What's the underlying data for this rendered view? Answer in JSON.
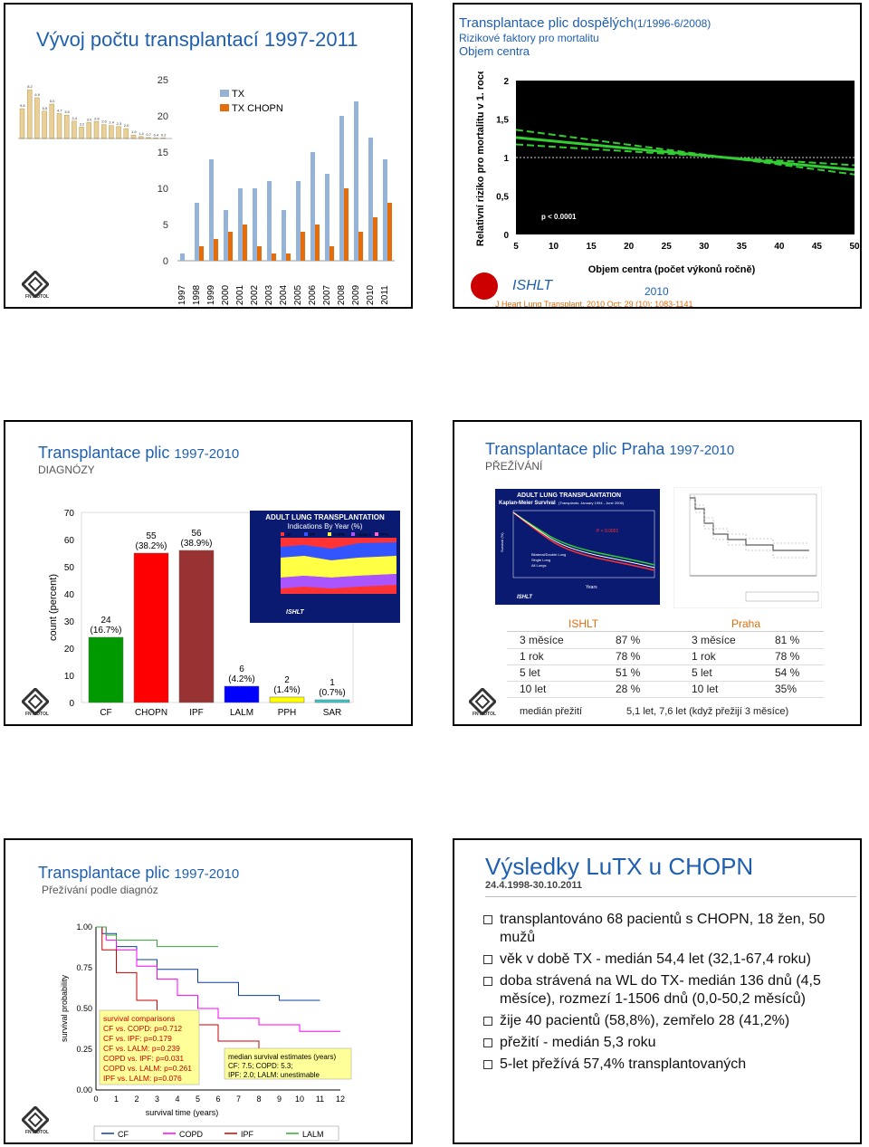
{
  "slide1": {
    "title": "Vývoj počtu transplantací 1997-2011",
    "legend": [
      "TX",
      "TX CHOPN"
    ],
    "colors": {
      "tx": "#95b3d7",
      "chopn": "#e46c0a"
    },
    "chart_data": {
      "type": "bar",
      "categories": [
        "1997",
        "1998",
        "1999",
        "2000",
        "2001",
        "2002",
        "2003",
        "2004",
        "2005",
        "2006",
        "2007",
        "2008",
        "2009",
        "2010",
        "2011"
      ],
      "series": [
        {
          "name": "TX",
          "values": [
            1,
            8,
            14,
            7,
            10,
            10,
            11,
            7,
            11,
            15,
            12,
            20,
            22,
            17,
            14
          ]
        },
        {
          "name": "TX CHOPN",
          "values": [
            0,
            2,
            3,
            4,
            5,
            2,
            1,
            1,
            4,
            5,
            2,
            10,
            4,
            6,
            8
          ]
        }
      ],
      "ylim": [
        0,
        25
      ],
      "yticks": [
        "0",
        "5",
        "10",
        "15",
        "20",
        "25"
      ]
    },
    "mini_chart": {
      "labels": [
        "9.8",
        "8.2",
        "6.9",
        "5.5",
        "5.0",
        "4.7",
        "3.5",
        "3.4",
        "3.2",
        "3.0",
        "2.8",
        "2.6",
        "2.4",
        "2.3",
        "2.0",
        "1.9",
        "1.4",
        "0.7",
        "0.4",
        "0.2"
      ],
      "values": [
        6,
        9.8,
        8.2,
        5.5,
        6.9,
        5,
        4.7,
        3.5,
        2.3,
        3.2,
        3.4,
        2.8,
        2.6,
        2.4,
        2.0,
        0.7,
        0.4,
        0.2,
        0.1,
        0.1
      ]
    },
    "logo_label": "FN MOTOL"
  },
  "slide2": {
    "title_main": "Transplantace plic dospělých",
    "title_small": "(1/1996-6/2008)",
    "sub1": "Rizikové faktory pro mortalitu",
    "sub2": "Objem centra",
    "ylabel": "Relativní riziko pro mortalitu v 1. roce",
    "xlabel": "Objem centra (počet výkonů ročně)",
    "yticks": [
      "2",
      "1,5",
      "1",
      "0,5",
      "0"
    ],
    "xticks": [
      "5",
      "10",
      "15",
      "20",
      "25",
      "30",
      "35",
      "40",
      "45",
      "50"
    ],
    "pvalue": "p < 0.0001",
    "brand": "ISHLT",
    "year": "2010",
    "citation": "J Heart Lung Transplant. 2010 Oct; 29 (10): 1083-1141"
  },
  "slide3": {
    "title": "Transplantace plic",
    "title_years": "1997-2010",
    "subtitle": "DIAGNÓZY",
    "ylabel": "count (percent)",
    "chart_data": {
      "type": "bar",
      "categories": [
        "CF",
        "CHOPN",
        "IPF",
        "LALM",
        "PPH",
        "SAR"
      ],
      "values": [
        24,
        55,
        56,
        6,
        2,
        1
      ],
      "labels": [
        "24\n(16.7%)",
        "55\n(38.2%)",
        "56\n(38.9%)",
        "6\n(4.2%)",
        "2\n(1.4%)",
        "1\n(0.7%)"
      ],
      "colors": [
        "#009900",
        "#ff0000",
        "#993333",
        "#0000ff",
        "#ffff00",
        "#33cccc"
      ],
      "ylim": [
        0,
        70
      ],
      "yticks": [
        "0",
        "10",
        "20",
        "30",
        "40",
        "50",
        "60",
        "70"
      ]
    },
    "inset": {
      "title1": "ADULT LUNG TRANSPLANTATION",
      "title2": "Indications By Year (%)",
      "legend": [
        "CF",
        "IPF",
        "COPD",
        "Alpha-1",
        "PPH"
      ],
      "brand": "ISHLT"
    },
    "logo_label": "FN MOTOL"
  },
  "slide4": {
    "title": "Transplantace plic Praha",
    "title_years": "1997-2010",
    "subtitle": "PŘEŽÍVÁNÍ",
    "km": {
      "title1": "ADULT LUNG TRANSPLANTATION",
      "title2": "Kaplan-Meier Survival",
      "title3": "(Transplants: January 1994 - June 2008)",
      "pvalue": "P < 0.0001",
      "legend": [
        "Bilateral/Double Lung",
        "Single Lung",
        "All Lungs"
      ],
      "ylabel": "Survival (%)",
      "xlabel": "Years",
      "brand": "ISHLT"
    },
    "table": {
      "headers": [
        "ISHLT",
        "Praha"
      ],
      "rows": [
        [
          "3 měsíce",
          "87 %",
          "3 měsíce",
          "81 %"
        ],
        [
          "1 rok",
          "78 %",
          "1 rok",
          "78 %"
        ],
        [
          "5 let",
          "51 %",
          "5 let",
          "54 %"
        ],
        [
          "10 let",
          "28 %",
          "10 let",
          "35%"
        ]
      ],
      "median_label": "medián přežití",
      "median_value": "5,1 let,  7,6 let (když  přežijí 3 měsíce)"
    },
    "logo_label": "FN MOTOL"
  },
  "slide5": {
    "title": "Transplantace plic",
    "title_years": "1997-2010",
    "subtitle": "Přežívání podle diagnóz",
    "ylabel": "survival probability",
    "xlabel": "survival time (years)",
    "yticks": [
      "0.00",
      "0.25",
      "0.50",
      "0.75",
      "1.00"
    ],
    "xticks": [
      "0",
      "1",
      "2",
      "3",
      "4",
      "5",
      "6",
      "7",
      "8",
      "9",
      "10",
      "11",
      "12"
    ],
    "comparisons": [
      "survival comparisons",
      "CF vs. COPD: p=0.712",
      "CF vs. IPF: p=0.179",
      "CF vs. LALM: p=0.239",
      "COPD vs. IPF: p=0.031",
      "COPD vs. LALM: p=0.261",
      "IPF vs. LALM: p=0.076"
    ],
    "median": [
      "median survival estimates (years)",
      "CF: 7.5;  COPD: 5.3;",
      "IPF: 2.0;  LALM: unestimable"
    ],
    "legend": [
      "CF",
      "COPD",
      "IPF",
      "LALM"
    ],
    "logo_label": "FN MOTOL"
  },
  "slide6": {
    "title": "Výsledky LuTX u CHOPN",
    "date": "24.4.1998-30.10.2011",
    "bullets": [
      "transplantováno 68 pacientů s CHOPN, 18 žen, 50 mužů",
      "věk v době TX   - medián 54,4 let (32,1-67,4 roku)",
      "doba strávená na WL do TX- medián 136 dnů (4,5 měsíce), rozmezí 1-1506 dnů (0,0-50,2 měsíců)",
      "žije 40 pacientů (58,8%), zemřelo 28 (41,2%)",
      "přežití  - medián 5,3 roku",
      "5-let přežívá 57,4% transplantovaných"
    ]
  }
}
